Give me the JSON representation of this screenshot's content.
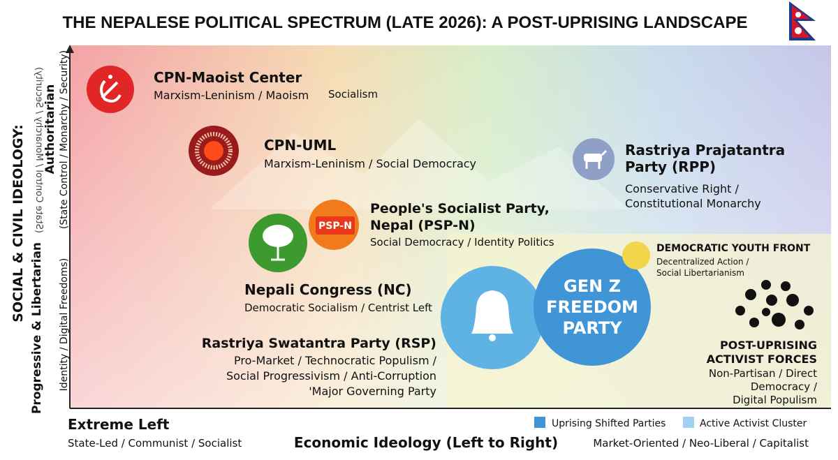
{
  "title": "THE NEPALESE POLITICAL SPECTRUM (LATE 2026): A POST-UPRISING LANDSCAPE",
  "y_axis": {
    "heading": "SOCIAL & CIVIL IDEOLOGY:",
    "top_label": "Authoritarian",
    "top_sub": "(State Control / Monarchy / Security)",
    "top_sub_mirrored": "(State Control / Monarchy / Security)",
    "bottom_label": "Progressive & Libertarian",
    "bottom_sub": "Identity / Digital Freedoms)"
  },
  "parties": [
    {
      "name": [
        "CPN-Maoist Center"
      ],
      "ideology": [
        "Marxism-Leninism / Maoism"
      ],
      "note": "Socialism"
    },
    {
      "name": [
        "CPN-UML"
      ],
      "ideology": [
        "Marxism-Leninism / Social Democracy"
      ]
    },
    {
      "name": [
        "Rastriya Prajatantra",
        "Party (RPP)"
      ],
      "ideology": [
        "Conservative Right /",
        "Constitutional Monarchy"
      ]
    },
    {
      "name": [
        "People's Socialist Party,",
        "Nepal (PSP-N)"
      ],
      "ideology": [
        "Social Democracy / Identity Politics"
      ],
      "logo_text": "PSP-N"
    },
    {
      "name": [
        "Nepali Congress (NC)"
      ],
      "ideology": [
        "Democratic Socialism / Centrist Left"
      ]
    },
    {
      "name": [
        "Rastriya Swatantra Party (RSP)"
      ],
      "ideology": [
        "Pro-Market / Technocratic Populism /",
        "Social Progressivism / Anti-Corruption",
        "'Major Governing Party"
      ]
    },
    {
      "name": [
        "GEN Z",
        "FREEDOM",
        "PARTY"
      ]
    },
    {
      "name": [
        "DEMOCRATIC YOUTH FRONT"
      ],
      "ideology": [
        "Decentralized Action /",
        "Social Libertarianism"
      ]
    },
    {
      "name": [
        "POST-UPRISING",
        "ACTIVIST FORCES"
      ],
      "ideology": [
        "Non-Partisan / Direct",
        "Democracy /",
        "Digital Populism"
      ]
    }
  ],
  "x_axis": {
    "left_label": "Extreme Left",
    "left_sub": "State-Led / Communist / Socialist",
    "title": "Economic Ideology (Left to Right)",
    "right_sub": "Market-Oriented / Neo-Liberal / Capitalist"
  },
  "legend": [
    "Uprising Shifted Parties",
    "Active Activist Cluster"
  ]
}
